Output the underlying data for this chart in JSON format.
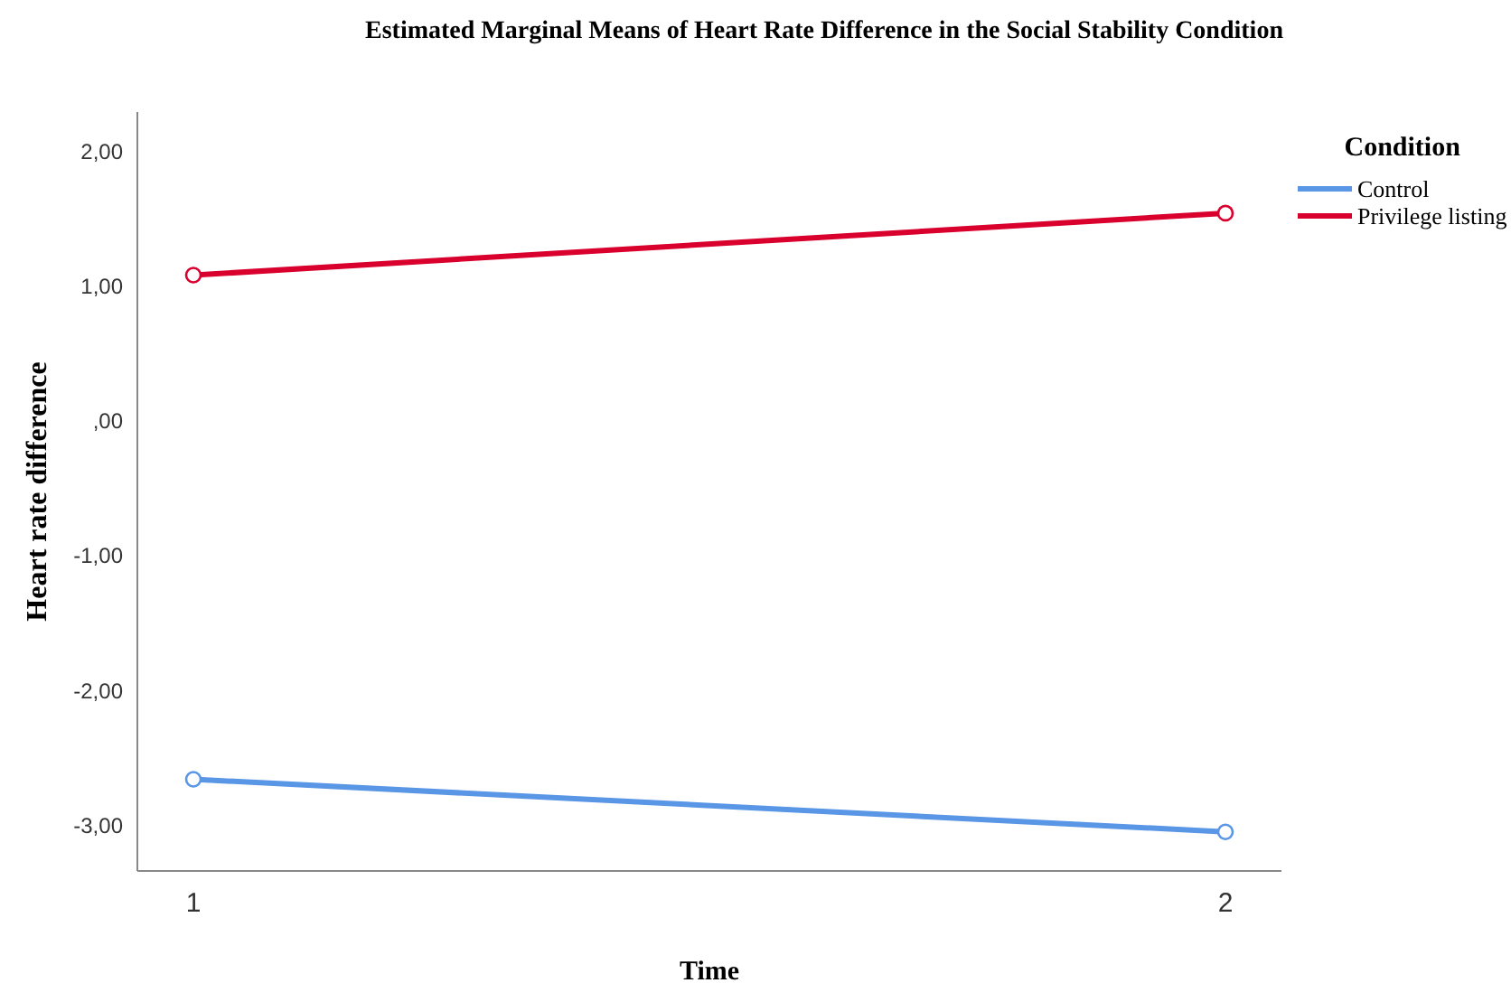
{
  "chart_data": {
    "type": "line",
    "title": "Estimated Marginal Means of Heart Rate Difference in the Social Stability Condition",
    "xlabel": "Time",
    "ylabel": "Heart rate difference",
    "legend_title": "Condition",
    "categories": [
      "1",
      "2"
    ],
    "series": [
      {
        "name": "Control",
        "color": "#5a96e6",
        "values": [
          -2.66,
          -3.05
        ]
      },
      {
        "name": "Privilege listing",
        "color": "#d9002e",
        "values": [
          1.08,
          1.54
        ]
      }
    ],
    "ylim": [
      -3.34,
      2.29
    ],
    "yticks": [
      {
        "value": -3,
        "label": "-3,00"
      },
      {
        "value": -2,
        "label": "-2,00"
      },
      {
        "value": -1,
        "label": "-1,00"
      },
      {
        "value": 0,
        "label": ",00"
      },
      {
        "value": 1,
        "label": "1,00"
      },
      {
        "value": 2,
        "label": "2,00"
      }
    ],
    "grid": false,
    "legend": "top right",
    "marker": "circle",
    "line_style": "solid"
  }
}
